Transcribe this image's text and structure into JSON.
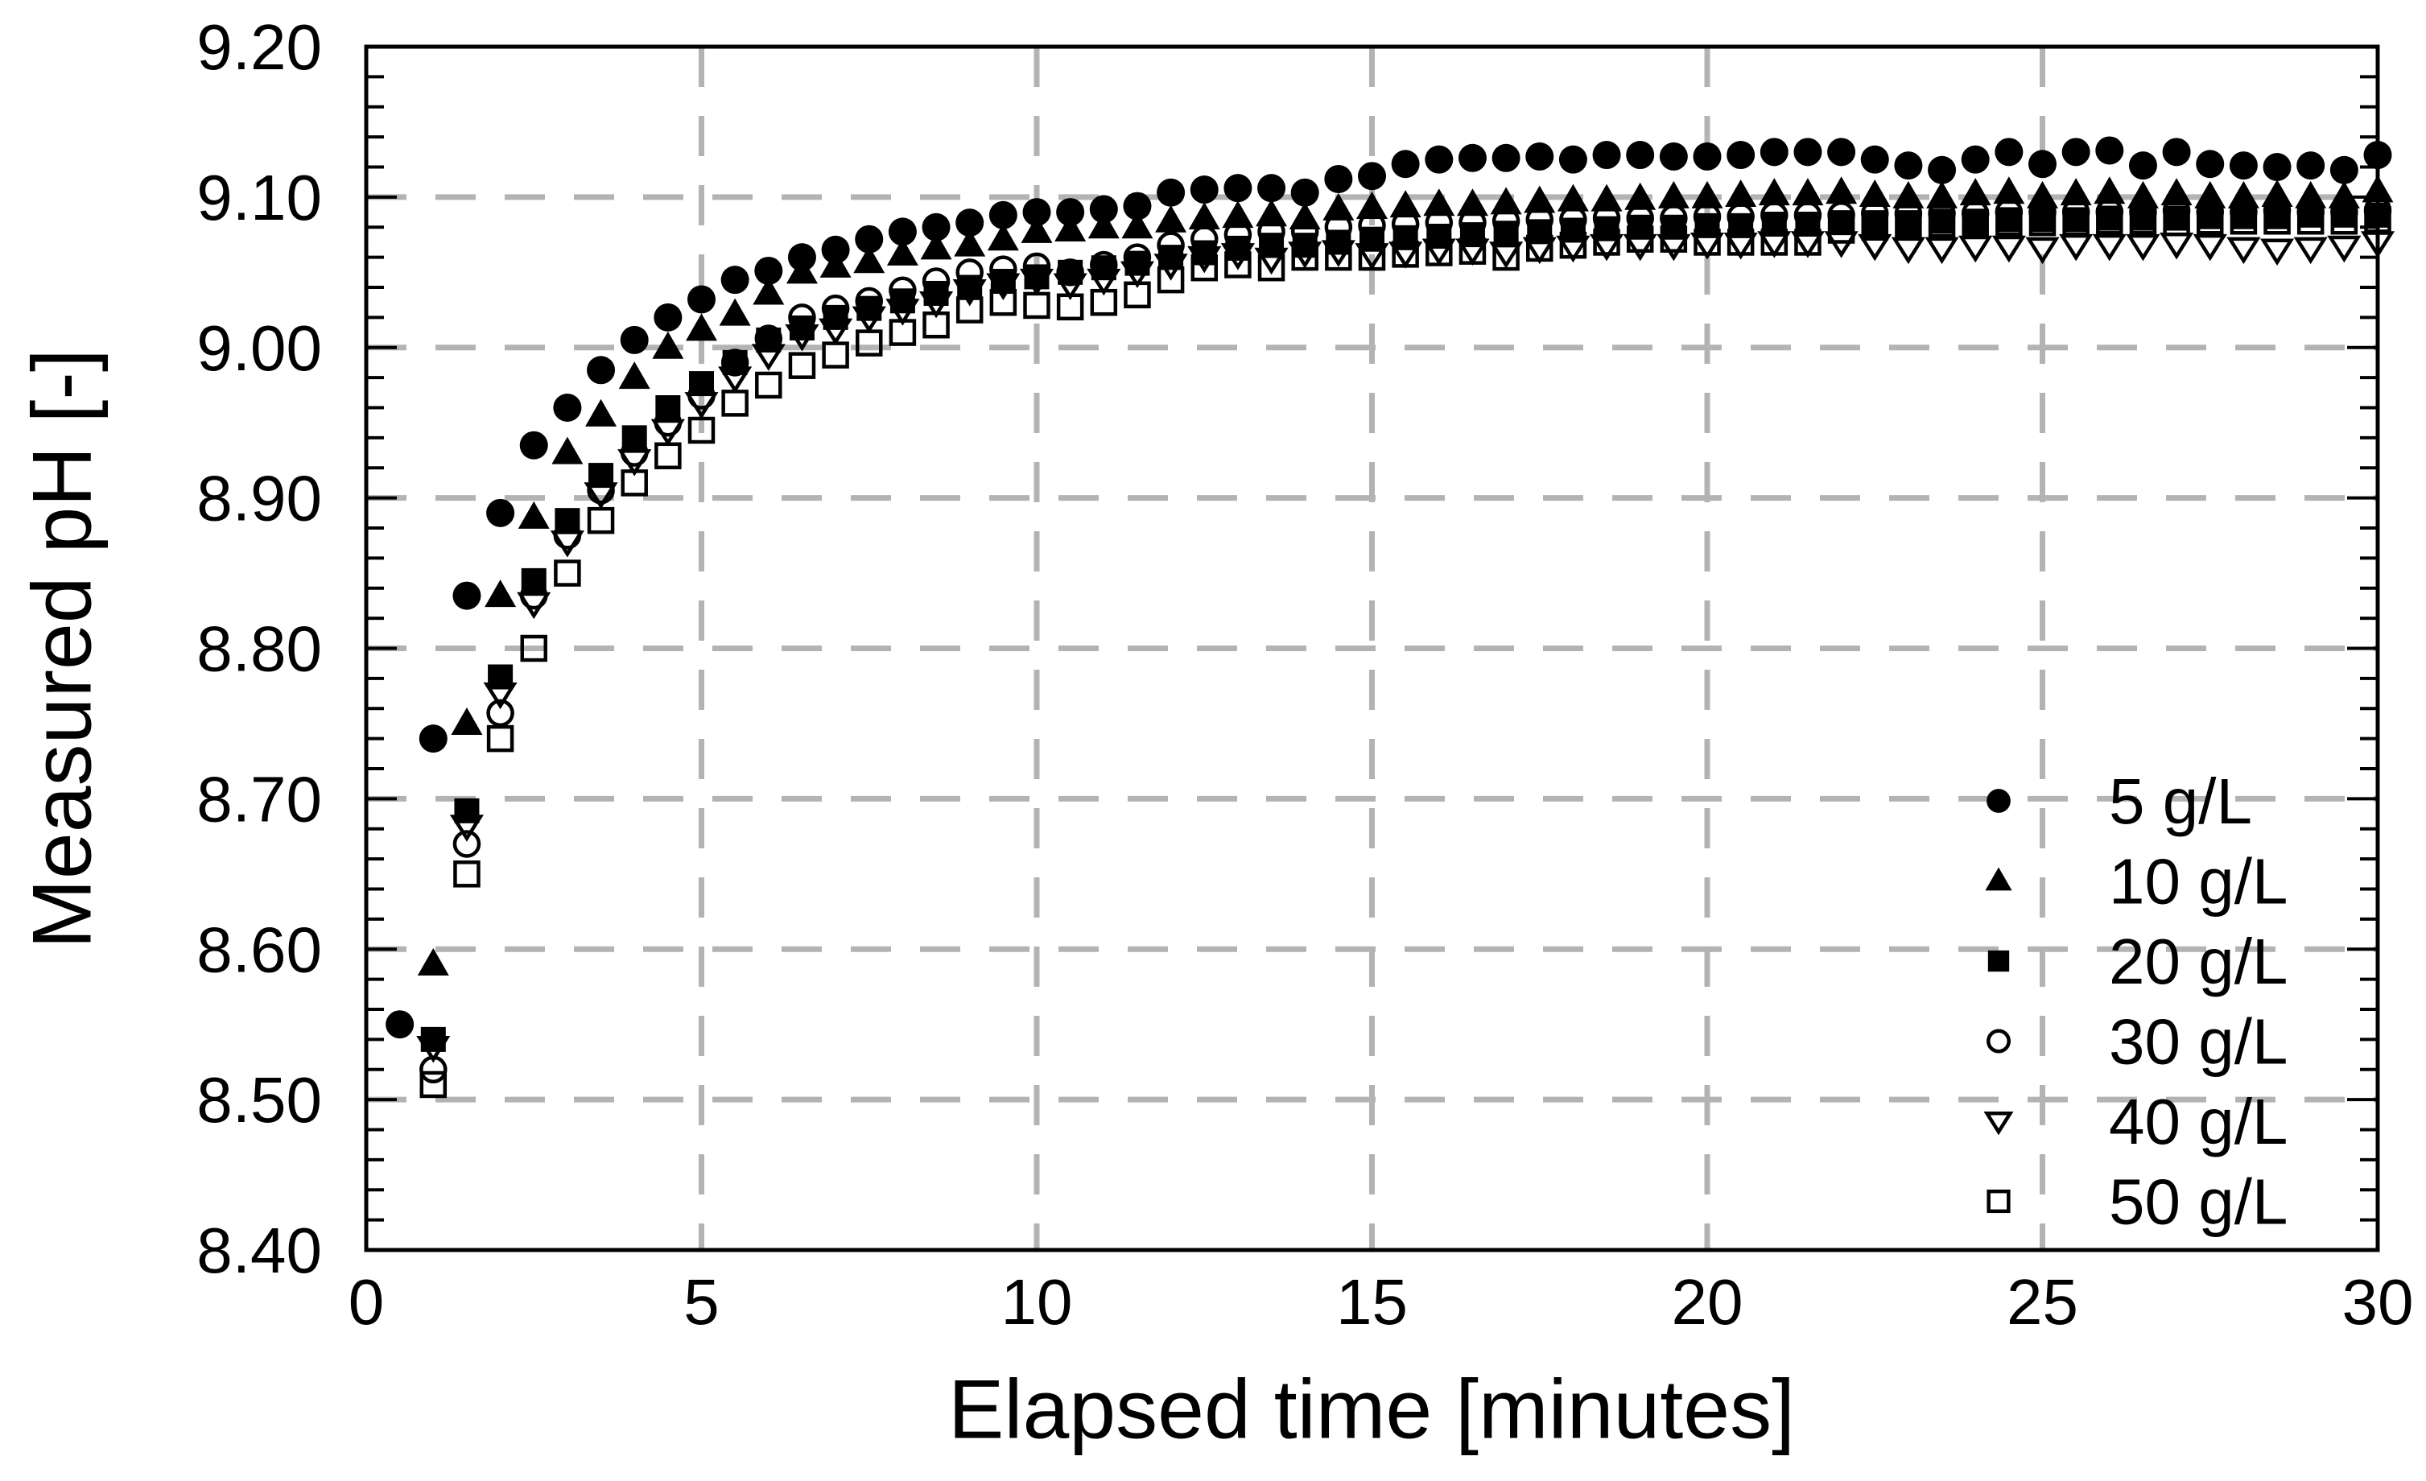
{
  "figure": {
    "background": "#ffffff",
    "text_color": "#000000",
    "grid_color": "#b3b3b3"
  },
  "chart_data": {
    "type": "scatter",
    "title": "",
    "xlabel": "Elapsed time [minutes]",
    "ylabel": "Measured pH [-]",
    "xlim": [
      0,
      30
    ],
    "ylim": [
      8.4,
      9.2
    ],
    "grid": "dashed",
    "legend_position": "inside lower right",
    "x_major_ticks": [
      0,
      5,
      10,
      15,
      20,
      25,
      30
    ],
    "x_tick_labels": [
      "0",
      "5",
      "10",
      "15",
      "20",
      "25",
      "30"
    ],
    "y_major_ticks": [
      8.4,
      8.5,
      8.6,
      8.7,
      8.8,
      8.9,
      9.0,
      9.1,
      9.2
    ],
    "y_tick_labels": [
      "8.40",
      "8.50",
      "8.60",
      "8.70",
      "8.80",
      "8.90",
      "9.00",
      "9.10",
      "9.20"
    ],
    "y_minor_tick_step": 0.02,
    "x_grid_lines": [
      5,
      10,
      15,
      20,
      25
    ],
    "y_grid_lines": [
      8.5,
      8.6,
      8.7,
      8.8,
      8.9,
      9.0,
      9.1
    ],
    "series": [
      {
        "name": "5 g/L",
        "marker": "circle-filled",
        "t_start": 0.5,
        "t_step": 0.5,
        "ph": [
          8.55,
          8.74,
          8.835,
          8.89,
          8.935,
          8.96,
          8.985,
          9.005,
          9.02,
          9.032,
          9.045,
          9.051,
          9.06,
          9.065,
          9.072,
          9.077,
          9.08,
          9.083,
          9.088,
          9.09,
          9.09,
          9.092,
          9.094,
          9.103,
          9.105,
          9.106,
          9.106,
          9.103,
          9.112,
          9.114,
          9.122,
          9.125,
          9.126,
          9.126,
          9.127,
          9.125,
          9.128,
          9.128,
          9.127,
          9.127,
          9.128,
          9.13,
          9.13,
          9.13,
          9.125,
          9.121,
          9.118,
          9.125,
          9.13,
          9.122,
          9.13,
          9.131,
          9.121,
          9.13,
          9.122,
          9.121,
          9.12,
          9.121,
          9.118,
          9.128
        ]
      },
      {
        "name": "10 g/L",
        "marker": "triangle-up-filled",
        "t_start": 1.0,
        "t_step": 0.5,
        "ph": [
          8.59,
          8.75,
          8.835,
          8.887,
          8.93,
          8.955,
          8.98,
          9.0,
          9.012,
          9.022,
          9.036,
          9.05,
          9.054,
          9.057,
          9.062,
          9.066,
          9.068,
          9.072,
          9.077,
          9.078,
          9.08,
          9.08,
          9.084,
          9.086,
          9.087,
          9.088,
          9.086,
          9.092,
          9.093,
          9.094,
          9.095,
          9.095,
          9.096,
          9.097,
          9.098,
          9.098,
          9.099,
          9.1,
          9.1,
          9.101,
          9.102,
          9.102,
          9.103,
          9.101,
          9.1,
          9.1,
          9.102,
          9.103,
          9.1,
          9.102,
          9.103,
          9.1,
          9.102,
          9.1,
          9.1,
          9.101,
          9.1,
          9.1,
          9.104
        ]
      },
      {
        "name": "20 g/L",
        "marker": "square-filled",
        "t_start": 1.0,
        "t_step": 0.5,
        "ph": [
          8.54,
          8.692,
          8.781,
          8.845,
          8.885,
          8.915,
          8.94,
          8.96,
          8.976,
          8.99,
          9.005,
          9.013,
          9.02,
          9.026,
          9.031,
          9.036,
          9.04,
          9.044,
          9.047,
          9.05,
          9.053,
          9.056,
          9.06,
          9.063,
          9.066,
          9.068,
          9.068,
          9.07,
          9.072,
          9.073,
          9.074,
          9.075,
          9.076,
          9.077,
          9.078,
          9.079,
          9.08,
          9.08,
          9.081,
          9.081,
          9.082,
          9.082,
          9.083,
          9.083,
          9.083,
          9.084,
          9.084,
          9.085,
          9.085,
          9.085,
          9.086,
          9.086,
          9.086,
          9.087,
          9.087,
          9.087,
          9.088,
          9.088,
          9.088
        ]
      },
      {
        "name": "30 g/L",
        "marker": "circle-open",
        "t_start": 1.0,
        "t_step": 0.5,
        "ph": [
          8.52,
          8.67,
          8.757,
          8.835,
          8.875,
          8.905,
          8.93,
          8.95,
          8.968,
          8.99,
          9.006,
          9.02,
          9.026,
          9.031,
          9.038,
          9.044,
          9.05,
          9.052,
          9.054,
          9.05,
          9.055,
          9.06,
          9.068,
          9.072,
          9.075,
          9.077,
          9.077,
          9.08,
          9.081,
          9.082,
          9.083,
          9.083,
          9.084,
          9.085,
          9.085,
          9.086,
          9.086,
          9.086,
          9.087,
          9.087,
          9.088,
          9.088,
          9.088,
          9.089,
          9.089,
          9.089,
          9.089,
          9.09,
          9.09,
          9.09,
          9.09,
          9.09,
          9.091,
          9.09,
          9.09,
          9.091,
          9.09,
          9.09,
          9.091
        ]
      },
      {
        "name": "40 g/L",
        "marker": "triangle-down-open",
        "t_start": 1.0,
        "t_step": 0.5,
        "ph": [
          8.535,
          8.682,
          8.77,
          8.83,
          8.871,
          8.903,
          8.925,
          8.945,
          8.963,
          8.98,
          8.995,
          9.008,
          9.012,
          9.02,
          9.025,
          9.03,
          9.038,
          9.042,
          9.045,
          9.042,
          9.045,
          9.05,
          9.055,
          9.06,
          9.062,
          9.059,
          9.063,
          9.064,
          9.062,
          9.063,
          9.065,
          9.065,
          9.063,
          9.066,
          9.067,
          9.068,
          9.068,
          9.068,
          9.069,
          9.069,
          9.07,
          9.07,
          9.07,
          9.068,
          9.066,
          9.066,
          9.067,
          9.067,
          9.066,
          9.068,
          9.068,
          9.068,
          9.069,
          9.068,
          9.066,
          9.065,
          9.066,
          9.067,
          9.07
        ]
      },
      {
        "name": "50 g/L",
        "marker": "square-open",
        "t_start": 1.0,
        "t_step": 0.5,
        "ph": [
          8.51,
          8.65,
          8.74,
          8.8,
          8.85,
          8.885,
          8.91,
          8.928,
          8.945,
          8.963,
          8.975,
          8.988,
          8.995,
          9.003,
          9.01,
          9.015,
          9.025,
          9.03,
          9.028,
          9.027,
          9.03,
          9.035,
          9.045,
          9.053,
          9.055,
          9.053,
          9.06,
          9.06,
          9.06,
          9.062,
          9.063,
          9.064,
          9.06,
          9.066,
          9.068,
          9.07,
          9.072,
          9.072,
          9.07,
          9.07,
          9.07,
          9.07,
          9.078,
          9.08,
          9.082,
          9.082,
          9.083,
          9.083,
          9.083,
          9.083,
          9.084,
          9.084,
          9.083,
          9.084,
          9.084,
          9.084,
          9.084,
          9.084,
          9.085
        ]
      }
    ]
  }
}
